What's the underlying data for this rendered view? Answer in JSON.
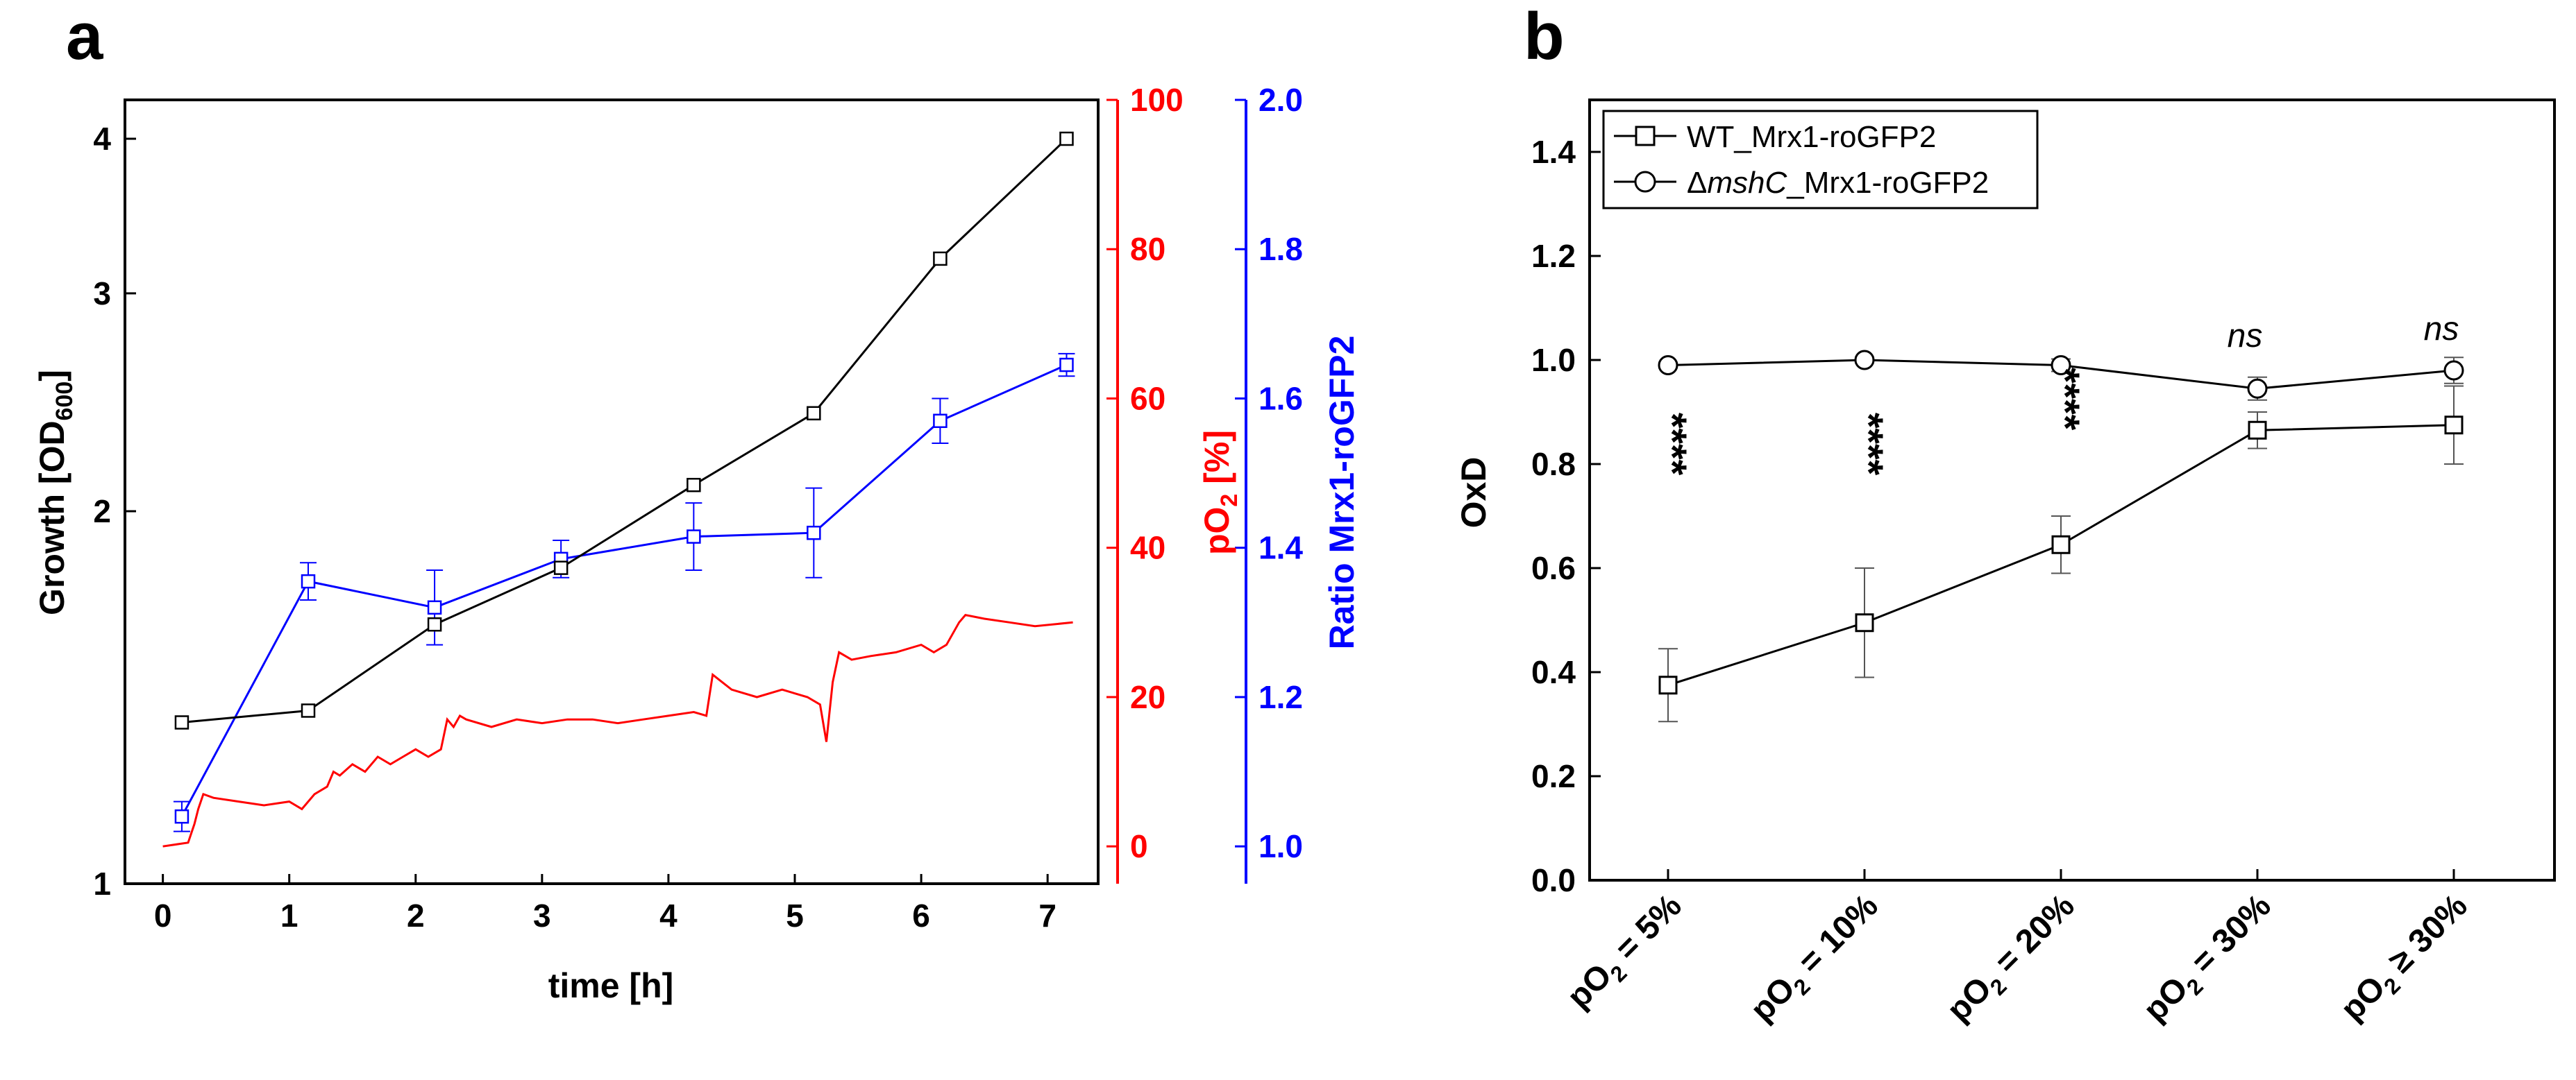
{
  "panels": {
    "a": {
      "label": "a",
      "xlabel": "time [h]",
      "ylabel_left_main": "Growth [OD",
      "ylabel_left_sub": "600",
      "ylabel_left_end": "]",
      "ylabel_red_main": "pO",
      "ylabel_red_sub": "2",
      "ylabel_red_end": " [%]",
      "ylabel_blue": "Ratio Mrx1-roGFP2"
    },
    "b": {
      "label": "b",
      "ylabel": "OxD",
      "legend": [
        {
          "prefix": "",
          "italic": "",
          "suffix": "WT_Mrx1-roGFP2",
          "marker": "square"
        },
        {
          "prefix": "Δ",
          "italic": "mshC",
          "suffix": "_Mrx1-roGFP2",
          "marker": "circle"
        }
      ],
      "categories": [
        {
          "main": "pO",
          "sub": "2",
          "rest": " = 5%"
        },
        {
          "main": "pO",
          "sub": "2",
          "rest": " = 10%"
        },
        {
          "main": "pO",
          "sub": "2",
          "rest": " = 20%"
        },
        {
          "main": "pO",
          "sub": "2",
          "rest": " = 30%"
        },
        {
          "main": "pO",
          "sub": "2",
          "rest": " ≥ 30%"
        }
      ]
    }
  },
  "chart_data": [
    {
      "type": "line",
      "panel": "a",
      "title": "",
      "xlabel": "time [h]",
      "ylabel": "Growth [OD600]",
      "x_ticks": [
        "0",
        "1",
        "2",
        "3",
        "4",
        "5",
        "6",
        "7"
      ],
      "xlim": [
        -0.3,
        7.4
      ],
      "axes": {
        "left": {
          "label": "Growth [OD600]",
          "scale": "log",
          "lim": [
            1,
            4.3
          ],
          "ticks": [
            "1",
            "2",
            "3",
            "4"
          ],
          "color": "#000000"
        },
        "right_red": {
          "label": "pO2 [%]",
          "scale": "linear",
          "lim": [
            -5,
            100
          ],
          "ticks": [
            "0",
            "20",
            "40",
            "60",
            "80",
            "100"
          ],
          "color": "#ff0000"
        },
        "right_blue": {
          "label": "Ratio Mrx1-roGFP2",
          "scale": "linear",
          "lim": [
            0.95,
            2.0
          ],
          "ticks": [
            "1.0",
            "1.2",
            "1.4",
            "1.6",
            "1.8",
            "2.0"
          ],
          "color": "#0000ff"
        }
      },
      "series": [
        {
          "name": "Growth (OD600)",
          "axis": "left",
          "color": "#000000",
          "marker": "square",
          "x": [
            0.15,
            1.15,
            2.15,
            3.15,
            4.2,
            5.15,
            6.15,
            7.15
          ],
          "y": [
            1.35,
            1.38,
            1.62,
            1.8,
            2.1,
            2.4,
            3.2,
            4.0
          ]
        },
        {
          "name": "Ratio Mrx1-roGFP2",
          "axis": "right_blue",
          "color": "#0000ff",
          "marker": "square",
          "x": [
            0.15,
            1.15,
            2.15,
            3.15,
            4.2,
            5.15,
            6.15,
            7.15
          ],
          "y": [
            1.04,
            1.355,
            1.32,
            1.385,
            1.415,
            1.42,
            1.57,
            1.645
          ],
          "error": [
            0.02,
            0.025,
            0.05,
            0.025,
            0.045,
            0.06,
            0.03,
            0.015
          ]
        },
        {
          "name": "pO2 [%]",
          "axis": "right_red",
          "color": "#ff0000",
          "marker": "none",
          "x": [
            0.0,
            0.2,
            0.25,
            0.28,
            0.32,
            0.4,
            0.6,
            0.8,
            1.0,
            1.1,
            1.2,
            1.3,
            1.35,
            1.4,
            1.5,
            1.6,
            1.7,
            1.8,
            1.9,
            2.0,
            2.1,
            2.2,
            2.25,
            2.3,
            2.35,
            2.4,
            2.6,
            2.8,
            3.0,
            3.2,
            3.4,
            3.6,
            3.8,
            4.0,
            4.2,
            4.3,
            4.35,
            4.5,
            4.7,
            4.9,
            5.1,
            5.2,
            5.25,
            5.3,
            5.35,
            5.45,
            5.6,
            5.8,
            6.0,
            6.1,
            6.2,
            6.3,
            6.35,
            6.5,
            6.7,
            6.9,
            7.2
          ],
          "y": [
            0,
            0.5,
            3,
            5,
            7,
            6.5,
            6,
            5.5,
            6,
            5,
            7,
            8,
            10,
            9.5,
            11,
            10,
            12,
            11,
            12,
            13,
            12,
            13,
            17,
            16,
            17.5,
            17,
            16,
            17,
            16.5,
            17,
            17,
            16.5,
            17,
            17.5,
            18,
            17.5,
            23,
            21,
            20,
            21,
            20,
            19,
            14,
            22,
            26,
            25,
            25.5,
            26,
            27,
            26,
            27,
            30,
            31,
            30.5,
            30,
            29.5,
            30
          ]
        }
      ]
    },
    {
      "type": "line",
      "panel": "b",
      "title": "",
      "xlabel": "",
      "ylabel": "OxD",
      "categories": [
        "pO2 = 5%",
        "pO2 = 10%",
        "pO2 = 20%",
        "pO2 = 30%",
        "pO2 ≥ 30%"
      ],
      "ylim": [
        0,
        1.5
      ],
      "y_ticks": [
        "0.0",
        "0.2",
        "0.4",
        "0.6",
        "0.8",
        "1.0",
        "1.2",
        "1.4"
      ],
      "legend_position": "top-left",
      "series": [
        {
          "name": "WT_Mrx1-roGFP2",
          "marker": "square",
          "color": "#000000",
          "values": [
            0.375,
            0.495,
            0.645,
            0.865,
            0.875
          ],
          "error": [
            0.07,
            0.105,
            0.055,
            0.035,
            0.075
          ]
        },
        {
          "name": "ΔmshC_Mrx1-roGFP2",
          "marker": "circle",
          "color": "#000000",
          "values": [
            0.99,
            1.0,
            0.99,
            0.945,
            0.98
          ],
          "error": [
            0.005,
            0.005,
            0.012,
            0.022,
            0.025
          ]
        }
      ],
      "annotations": [
        "****",
        "****",
        "****",
        "ns",
        "ns"
      ]
    }
  ]
}
